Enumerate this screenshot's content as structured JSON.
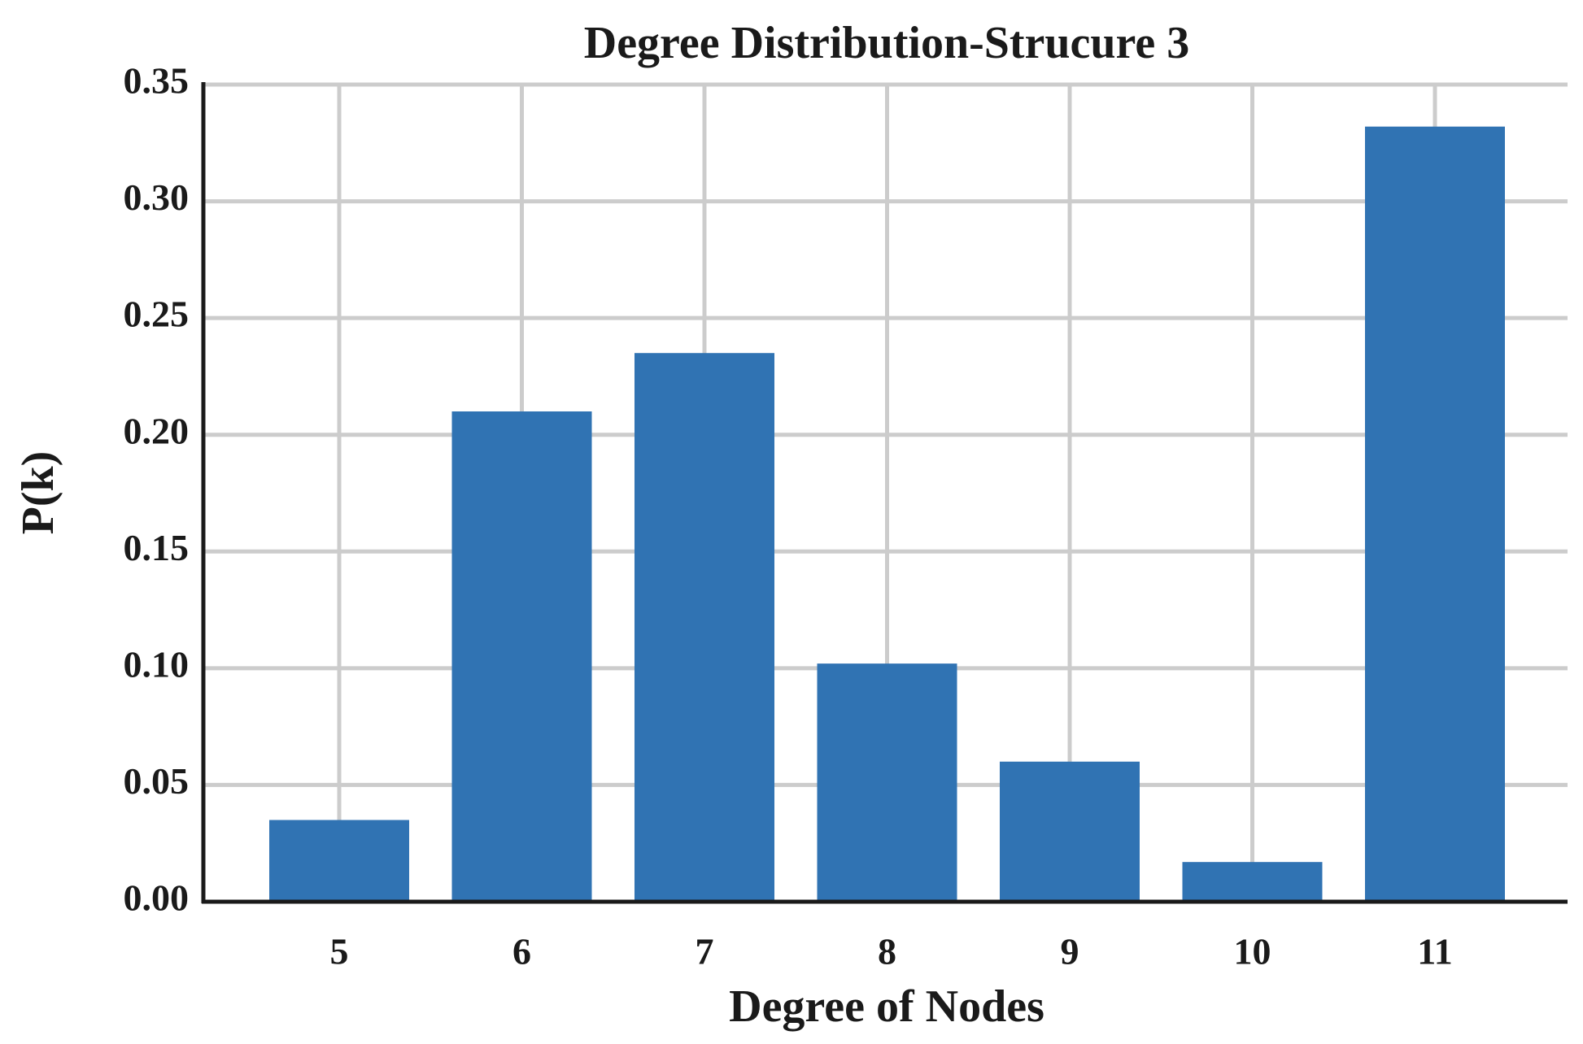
{
  "chart_data": {
    "type": "bar",
    "title": "Degree Distribution-Strucure 3",
    "x_label": "Degree of Nodes",
    "y_label": "P(k)",
    "categories": [
      "5",
      "6",
      "7",
      "8",
      "9",
      "10",
      "11"
    ],
    "values": [
      0.035,
      0.21,
      0.235,
      0.102,
      0.06,
      0.017,
      0.332
    ],
    "color": "#3073b3",
    "ylim": [
      0,
      0.35
    ],
    "yticks": [
      {
        "value": 0,
        "label": "0.00"
      },
      {
        "value": 0.05,
        "label": "0.05"
      },
      {
        "value": 0.1,
        "label": "0.10"
      },
      {
        "value": 0.15,
        "label": "0.15"
      },
      {
        "value": 0.2,
        "label": "0.20"
      },
      {
        "value": 0.25,
        "label": "0.25"
      },
      {
        "value": 0.3,
        "label": "0.30"
      },
      {
        "value": 0.35,
        "label": "0.35"
      }
    ],
    "grid": true
  }
}
